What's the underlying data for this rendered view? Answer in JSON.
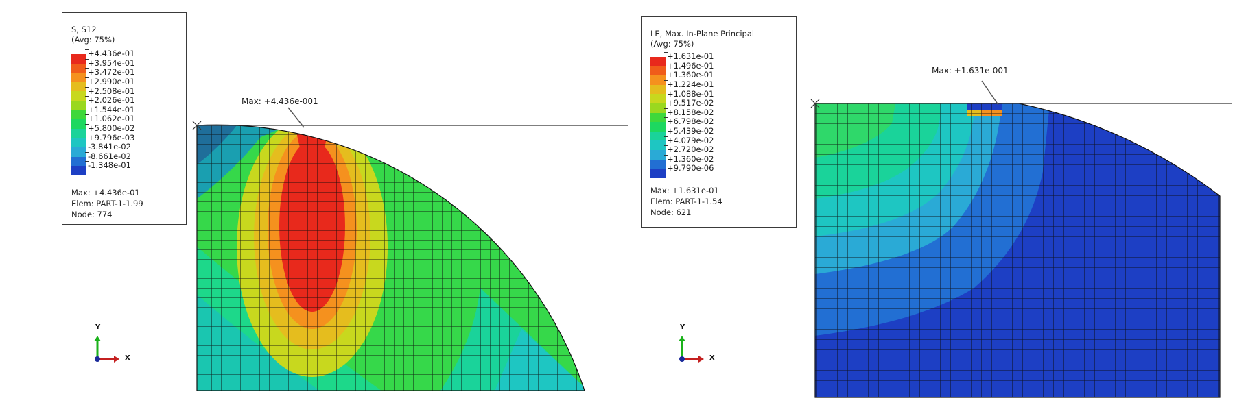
{
  "left": {
    "legend": {
      "title": "S, S12",
      "subtitle": "(Avg: 75%)",
      "ticks": [
        "+4.436e-01",
        "+3.954e-01",
        "+3.472e-01",
        "+2.990e-01",
        "+2.508e-01",
        "+2.026e-01",
        "+1.544e-01",
        "+1.062e-01",
        "+5.800e-02",
        "+9.796e-03",
        "-3.841e-02",
        "-8.661e-02",
        "-1.348e-01"
      ],
      "colors": [
        "#e8291c",
        "#f05c1a",
        "#f5911e",
        "#e5bd1e",
        "#c8d81e",
        "#9ad81f",
        "#3ed83b",
        "#1dd860",
        "#1ad39a",
        "#1ec6c2",
        "#2aaad6",
        "#226fd3",
        "#1d3fc4"
      ],
      "max_line": "Max: +4.436e-01",
      "elem_line": "Elem: PART-1-1.99",
      "node_line": "Node: 774"
    },
    "max_marker": "Max: +4.436e-001",
    "axis_x": "X",
    "axis_y": "Y"
  },
  "right": {
    "legend": {
      "title": "LE, Max. In-Plane Principal",
      "subtitle": "(Avg: 75%)",
      "ticks": [
        "+1.631e-01",
        "+1.496e-01",
        "+1.360e-01",
        "+1.224e-01",
        "+1.088e-01",
        "+9.517e-02",
        "+8.158e-02",
        "+6.798e-02",
        "+5.439e-02",
        "+4.079e-02",
        "+2.720e-02",
        "+1.360e-02",
        "+9.790e-06"
      ],
      "colors": [
        "#e8291c",
        "#f05c1a",
        "#f5911e",
        "#e5bd1e",
        "#c8d81e",
        "#9ad81f",
        "#3ed83b",
        "#1dd860",
        "#1ad39a",
        "#1ec6c2",
        "#2aaad6",
        "#226fd3",
        "#1d3fc4"
      ],
      "max_line": "Max: +1.631e-01",
      "elem_line": "Elem: PART-1-1.54",
      "node_line": "Node: 621"
    },
    "max_marker": "Max: +1.631e-001",
    "axis_x": "X",
    "axis_y": "Y"
  }
}
